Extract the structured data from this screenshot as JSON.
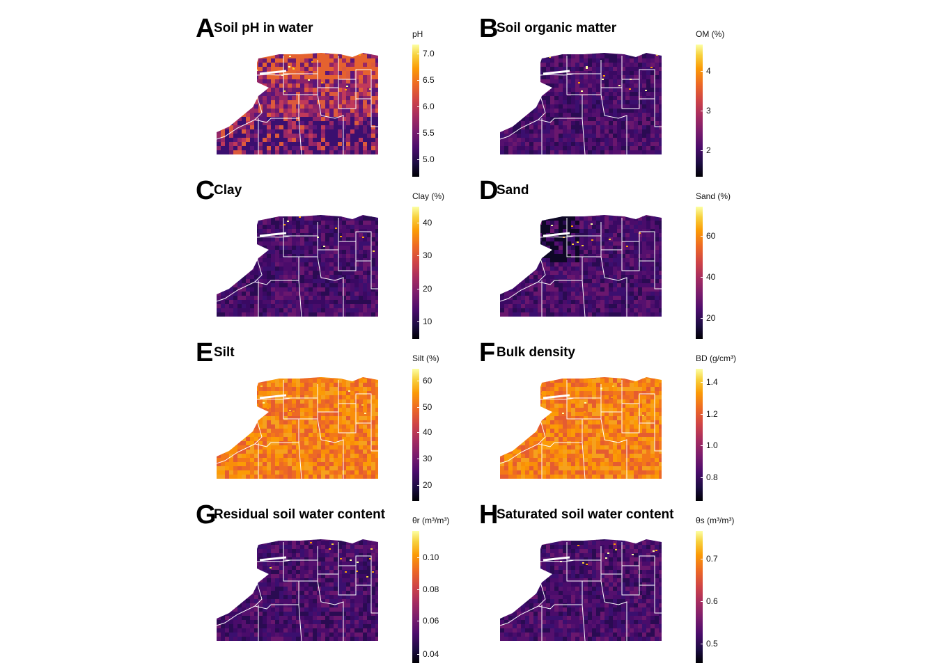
{
  "panels": [
    {
      "letter": "A",
      "title": "Soil pH in water",
      "legend_title": "pH",
      "ticks": [
        "7.0",
        "6.5",
        "6.0",
        "5.5",
        "5.0"
      ],
      "tick_fracs": [
        0.07,
        0.27,
        0.47,
        0.67,
        0.87
      ],
      "palette": "mid",
      "dark_upper": false
    },
    {
      "letter": "B",
      "title": "Soil organic matter",
      "legend_title": "OM (%)",
      "ticks": [
        "4",
        "3",
        "2"
      ],
      "tick_fracs": [
        0.2,
        0.5,
        0.8
      ],
      "palette": "dark",
      "dark_upper": false
    },
    {
      "letter": "C",
      "title": "Clay",
      "legend_title": "Clay (%)",
      "ticks": [
        "40",
        "30",
        "20",
        "10"
      ],
      "tick_fracs": [
        0.12,
        0.37,
        0.62,
        0.87
      ],
      "palette": "dark",
      "dark_upper": false
    },
    {
      "letter": "D",
      "title": "Sand",
      "legend_title": "Sand (%)",
      "ticks": [
        "60",
        "40",
        "20"
      ],
      "tick_fracs": [
        0.22,
        0.53,
        0.84
      ],
      "palette": "dark",
      "dark_upper": true
    },
    {
      "letter": "E",
      "title": "Silt",
      "legend_title": "Silt (%)",
      "ticks": [
        "60",
        "50",
        "40",
        "30",
        "20"
      ],
      "tick_fracs": [
        0.09,
        0.29,
        0.48,
        0.68,
        0.88
      ],
      "palette": "bright",
      "dark_upper": false
    },
    {
      "letter": "F",
      "title": "Bulk density",
      "legend_title": "BD (g/cm³)",
      "ticks": [
        "1.4",
        "1.2",
        "1.0",
        "0.8"
      ],
      "tick_fracs": [
        0.1,
        0.34,
        0.58,
        0.82
      ],
      "palette": "bright",
      "dark_upper": false
    },
    {
      "letter": "G",
      "title": "Residual soil water content",
      "legend_title": "θr (m³/m³)",
      "ticks": [
        "0.10",
        "0.08",
        "0.06",
        "0.04"
      ],
      "tick_fracs": [
        0.2,
        0.44,
        0.68,
        0.93
      ],
      "palette": "dark",
      "dark_upper": false
    },
    {
      "letter": "H",
      "title": "Saturated soil water content",
      "legend_title": "θs (m³/m³)",
      "ticks": [
        "0.7",
        "0.6",
        "0.5"
      ],
      "tick_fracs": [
        0.21,
        0.53,
        0.85
      ],
      "palette": "dark",
      "dark_upper": false
    }
  ],
  "colors": {
    "boundary": "#ffffff",
    "mid": [
      "#6a1a6e",
      "#9a2865",
      "#c0395a",
      "#dc5a3c",
      "#8c2369",
      "#5a157a"
    ],
    "dark": [
      "#2a0b52",
      "#3b0f6f",
      "#4a0c6b",
      "#55106e",
      "#3a0963",
      "#6a176e"
    ],
    "bright": [
      "#ed6925",
      "#f37819",
      "#f98e09",
      "#fb9b06",
      "#e55c30",
      "#f6a11d"
    ],
    "accent": [
      "#fcffa4",
      "#f7d13d",
      "#fb9b06",
      "#1b0c41",
      "#000004"
    ]
  }
}
